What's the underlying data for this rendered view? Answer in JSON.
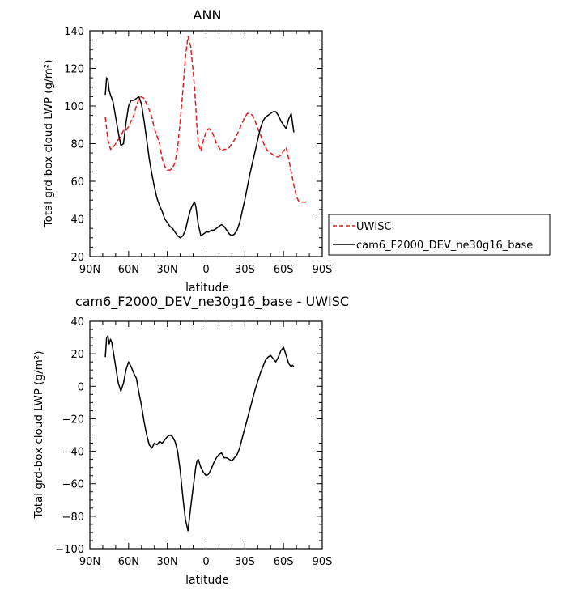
{
  "chart_data": [
    {
      "type": "line",
      "title": "ANN",
      "xlabel": "latitude",
      "ylabel": "Total grd-box cloud LWP (g/m²)",
      "xlim": [
        90,
        -90
      ],
      "ylim": [
        20,
        140
      ],
      "grid": false,
      "legend_position": "right",
      "xticks": [
        {
          "value": 90,
          "label": "90N"
        },
        {
          "value": 60,
          "label": "60N"
        },
        {
          "value": 30,
          "label": "30N"
        },
        {
          "value": 0,
          "label": "0"
        },
        {
          "value": -30,
          "label": "30S"
        },
        {
          "value": -60,
          "label": "60S"
        },
        {
          "value": -90,
          "label": "90S"
        }
      ],
      "yticks": [
        20,
        40,
        60,
        80,
        100,
        120,
        140
      ],
      "series": [
        {
          "name": "UWISC",
          "color": "#e41a1c",
          "dash": "dashed",
          "x": [
            78,
            76,
            74,
            72,
            70,
            68,
            66,
            64,
            62,
            60,
            58,
            56,
            54,
            52,
            50,
            48,
            46,
            44,
            42,
            40,
            38,
            36,
            34,
            32,
            30,
            28,
            26,
            24,
            22,
            20,
            18,
            16,
            14,
            12,
            10,
            9,
            8,
            7,
            6,
            4,
            2,
            0,
            -2,
            -4,
            -6,
            -8,
            -10,
            -12,
            -14,
            -16,
            -18,
            -20,
            -22,
            -24,
            -26,
            -28,
            -30,
            -32,
            -34,
            -36,
            -38,
            -40,
            -42,
            -44,
            -46,
            -48,
            -50,
            -52,
            -54,
            -56,
            -58,
            -60,
            -62,
            -64,
            -66,
            -68,
            -70,
            -72,
            -74,
            -76,
            -78
          ],
          "y": [
            94,
            82,
            77,
            78,
            80,
            82,
            84,
            87,
            87,
            89,
            92,
            95,
            100,
            104,
            105,
            104,
            101,
            98,
            94,
            88,
            84,
            80,
            72,
            68,
            66,
            66,
            67,
            70,
            78,
            92,
            108,
            126,
            137,
            132,
            118,
            110,
            100,
            88,
            80,
            76,
            82,
            86,
            88,
            87,
            84,
            80,
            78,
            76,
            77,
            77,
            78,
            80,
            82,
            85,
            88,
            91,
            94,
            96,
            96,
            95,
            92,
            88,
            85,
            81,
            78,
            76,
            75,
            74,
            73,
            73,
            74,
            76,
            78,
            72,
            65,
            58,
            52,
            49,
            49,
            49,
            49
          ]
        },
        {
          "name": "cam6_F2000_DEV_ne30g16_base",
          "color": "#000000",
          "dash": "solid",
          "x": [
            78,
            77,
            76,
            75,
            74,
            72,
            70,
            68,
            66,
            64,
            62,
            60,
            58,
            56,
            54,
            52,
            50,
            48,
            46,
            44,
            42,
            40,
            38,
            36,
            34,
            32,
            30,
            28,
            26,
            24,
            22,
            20,
            18,
            16,
            14,
            12,
            10,
            9,
            8,
            7,
            6,
            4,
            2,
            0,
            -2,
            -4,
            -6,
            -8,
            -10,
            -12,
            -14,
            -16,
            -18,
            -20,
            -22,
            -24,
            -26,
            -28,
            -30,
            -32,
            -34,
            -36,
            -38,
            -40,
            -42,
            -44,
            -46,
            -48,
            -50,
            -52,
            -54,
            -56,
            -58,
            -60,
            -62,
            -64,
            -66,
            -68
          ],
          "y": [
            106,
            115,
            114,
            108,
            106,
            102,
            94,
            86,
            79,
            80,
            91,
            100,
            103,
            103,
            104,
            105,
            101,
            92,
            82,
            72,
            64,
            57,
            51,
            47,
            44,
            40,
            38,
            36,
            35,
            33,
            31,
            30,
            31,
            34,
            40,
            45,
            48,
            49,
            47,
            42,
            37,
            31,
            32,
            33,
            33,
            34,
            34,
            35,
            36,
            37,
            36,
            34,
            32,
            31,
            32,
            34,
            38,
            44,
            50,
            57,
            64,
            70,
            76,
            82,
            88,
            92,
            94,
            95,
            96,
            97,
            97,
            95,
            92,
            90,
            88,
            93,
            96,
            86
          ]
        }
      ]
    },
    {
      "type": "line",
      "title": "cam6_F2000_DEV_ne30g16_base - UWISC",
      "xlabel": "latitude",
      "ylabel": "Total grd-box cloud LWP (g/m²)",
      "xlim": [
        90,
        -90
      ],
      "ylim": [
        -100,
        40
      ],
      "grid": false,
      "xticks": [
        {
          "value": 90,
          "label": "90N"
        },
        {
          "value": 60,
          "label": "60N"
        },
        {
          "value": 30,
          "label": "30N"
        },
        {
          "value": 0,
          "label": "0"
        },
        {
          "value": -30,
          "label": "30S"
        },
        {
          "value": -60,
          "label": "60S"
        },
        {
          "value": -90,
          "label": "90S"
        }
      ],
      "yticks": [
        -100,
        -80,
        -60,
        -40,
        -20,
        0,
        20,
        40
      ],
      "series": [
        {
          "color": "#000000",
          "dash": "solid",
          "x": [
            78,
            77,
            76,
            75,
            74,
            73,
            72,
            70,
            68,
            66,
            64,
            62,
            60,
            58,
            56,
            54,
            52,
            50,
            48,
            46,
            44,
            42,
            40,
            38,
            36,
            34,
            32,
            30,
            28,
            26,
            24,
            22,
            20,
            18,
            16,
            14,
            12,
            10,
            9,
            8,
            7,
            6,
            4,
            2,
            0,
            -2,
            -4,
            -6,
            -8,
            -10,
            -12,
            -14,
            -16,
            -18,
            -20,
            -22,
            -24,
            -26,
            -28,
            -30,
            -32,
            -34,
            -36,
            -38,
            -40,
            -42,
            -44,
            -46,
            -48,
            -50,
            -52,
            -54,
            -56,
            -58,
            -60,
            -62,
            -64,
            -66,
            -67,
            -68
          ],
          "y": [
            18,
            30,
            31,
            26,
            29,
            27,
            22,
            12,
            2,
            -3,
            2,
            10,
            15,
            12,
            8,
            5,
            -4,
            -12,
            -22,
            -30,
            -36,
            -38,
            -35,
            -36,
            -34,
            -35,
            -33,
            -31,
            -30,
            -31,
            -34,
            -40,
            -52,
            -68,
            -82,
            -89,
            -75,
            -62,
            -56,
            -50,
            -46,
            -45,
            -50,
            -53,
            -55,
            -54,
            -51,
            -47,
            -44,
            -42,
            -41,
            -44,
            -44,
            -45,
            -46,
            -44,
            -42,
            -38,
            -32,
            -26,
            -20,
            -14,
            -8,
            -2,
            3,
            8,
            12,
            16,
            18,
            19,
            17,
            15,
            18,
            22,
            24,
            19,
            14,
            12,
            13,
            12
          ]
        }
      ]
    }
  ]
}
